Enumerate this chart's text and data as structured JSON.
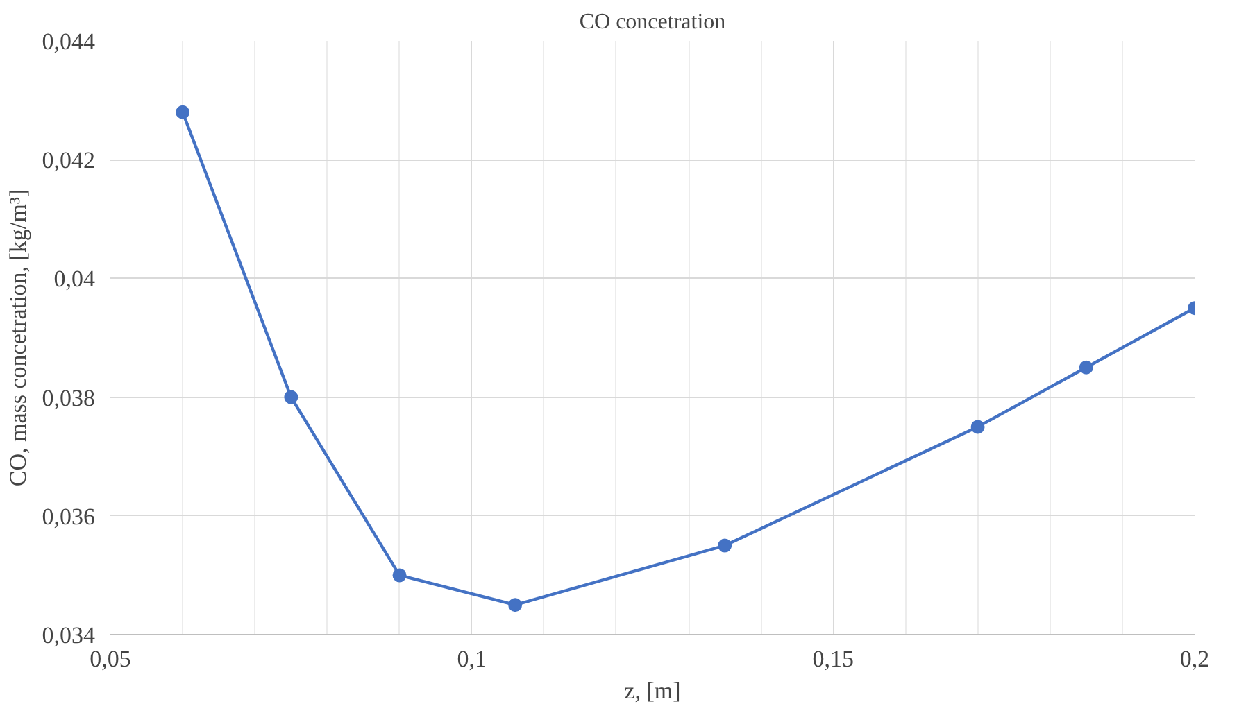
{
  "chart_data": {
    "type": "line",
    "title": "CO concetration",
    "xlabel": "z, [m]",
    "ylabel": "CO, mass concetration, [kg/m³]",
    "x": [
      0.06,
      0.075,
      0.09,
      0.106,
      0.135,
      0.17,
      0.185,
      0.2
    ],
    "series": [
      {
        "color": "#4472c4",
        "values": [
          0.0428,
          0.038,
          0.035,
          0.0345,
          0.0355,
          0.0375,
          0.0385,
          0.0395
        ]
      }
    ],
    "xlim": [
      0.05,
      0.2
    ],
    "ylim": [
      0.034,
      0.044
    ],
    "xticks": [
      {
        "value": 0.05,
        "label": "0,05"
      },
      {
        "value": 0.1,
        "label": "0,1"
      },
      {
        "value": 0.15,
        "label": "0,15"
      },
      {
        "value": 0.2,
        "label": "0,2"
      }
    ],
    "yticks": [
      {
        "value": 0.034,
        "label": "0,034"
      },
      {
        "value": 0.036,
        "label": "0,036"
      },
      {
        "value": 0.038,
        "label": "0,038"
      },
      {
        "value": 0.04,
        "label": "0,04"
      },
      {
        "value": 0.042,
        "label": "0,042"
      },
      {
        "value": 0.044,
        "label": "0,044"
      }
    ],
    "grid": true,
    "marker": "circle",
    "line_style": "solid"
  }
}
